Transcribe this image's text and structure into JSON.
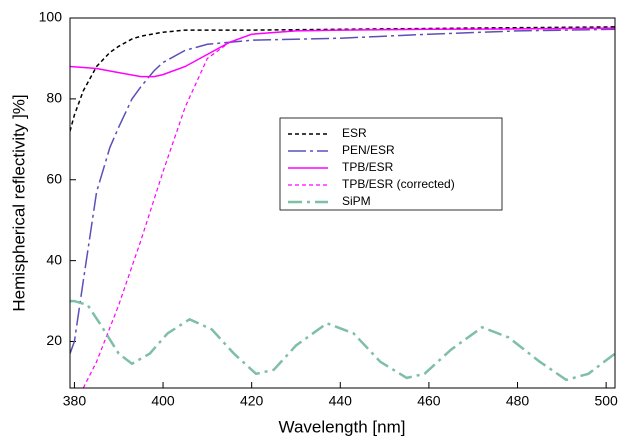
{
  "chart_data": {
    "type": "line",
    "x_label": "Wavelength [nm]",
    "y_label": "Hemispherical reflectivity ]%]",
    "xlim": [
      379,
      502
    ],
    "ylim": [
      8.5,
      100
    ],
    "xticks": [
      380,
      400,
      420,
      440,
      460,
      480,
      500
    ],
    "yticks": [
      20,
      40,
      60,
      80,
      100
    ],
    "series": [
      {
        "name": "ESR",
        "color": "#000000",
        "dash": "4,3",
        "width": 1.5,
        "x": [
          379,
          380,
          382,
          385,
          388,
          390,
          393,
          395,
          400,
          405,
          410,
          420,
          440,
          460,
          480,
          502
        ],
        "values": [
          72,
          76,
          82,
          88,
          91.5,
          93,
          94.8,
          95.5,
          96.5,
          97,
          97,
          97,
          97.2,
          97.4,
          97.6,
          97.8
        ]
      },
      {
        "name": "PEN/ESR",
        "color": "#5a50b8",
        "dash": "18,4,3,4",
        "width": 1.5,
        "x": [
          379,
          380,
          382,
          385,
          388,
          390,
          393,
          395,
          398,
          400,
          405,
          410,
          420,
          440,
          460,
          480,
          502
        ],
        "values": [
          17,
          20,
          35,
          57,
          68,
          73,
          80,
          83,
          87,
          89,
          92,
          93.5,
          94.5,
          95,
          96,
          96.8,
          97.2
        ]
      },
      {
        "name": "TPB/ESR",
        "color": "#ff00ff",
        "dash": "",
        "width": 1.5,
        "x": [
          379,
          385,
          390,
          395,
          398,
          400,
          405,
          410,
          415,
          420,
          430,
          440,
          460,
          480,
          502
        ],
        "values": [
          88,
          87.5,
          86.5,
          85.5,
          85.5,
          86,
          88,
          91,
          94,
          96,
          96.8,
          97,
          97.2,
          97.3,
          97.5
        ]
      },
      {
        "name": "TPB/ESR (corrected)",
        "color": "#ff00ff",
        "dash": "4,3",
        "width": 1.2,
        "x": [
          382,
          385,
          390,
          395,
          400,
          405,
          410,
          415,
          420,
          430,
          440,
          460,
          480,
          502
        ],
        "values": [
          8.5,
          15,
          29,
          45,
          62,
          78,
          90,
          94,
          96,
          96.8,
          97,
          97.2,
          97.3,
          97.5
        ]
      },
      {
        "name": "SiPM",
        "color": "#7fbfa5",
        "dash": "14,5,3,5",
        "width": 2.5,
        "x": [
          379,
          380,
          383,
          386,
          390,
          393,
          397,
          401,
          406,
          411,
          416,
          421,
          425,
          430,
          437,
          443,
          449,
          455,
          459,
          465,
          472,
          478,
          485,
          491,
          496,
          502
        ],
        "values": [
          30,
          30,
          29,
          24,
          17,
          14.5,
          17,
          22,
          25.5,
          23,
          17,
          12,
          13,
          19,
          24.5,
          22,
          15,
          11,
          12,
          18,
          23.5,
          21,
          15,
          10.5,
          12,
          17
        ]
      }
    ]
  }
}
